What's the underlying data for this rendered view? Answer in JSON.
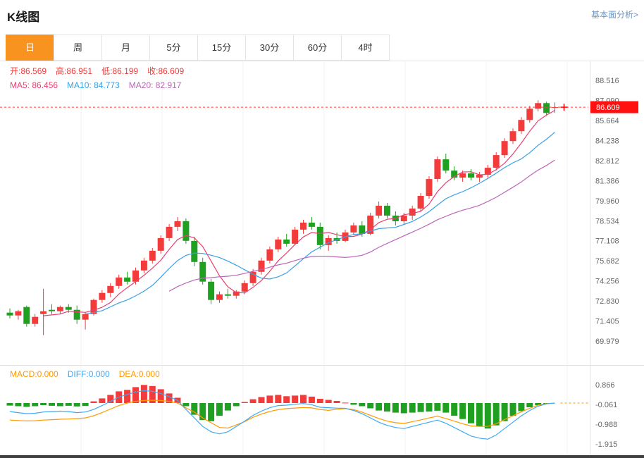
{
  "header": {
    "title": "K线图",
    "link": "基本面分析>"
  },
  "tabs": [
    {
      "label": "日",
      "active": true
    },
    {
      "label": "周",
      "active": false
    },
    {
      "label": "月",
      "active": false
    },
    {
      "label": "5分",
      "active": false
    },
    {
      "label": "15分",
      "active": false
    },
    {
      "label": "30分",
      "active": false
    },
    {
      "label": "60分",
      "active": false
    },
    {
      "label": "4时",
      "active": false
    }
  ],
  "price_panel": {
    "ohlc": [
      {
        "label": "开:",
        "value": "86.569"
      },
      {
        "label": "高:",
        "value": "86.951"
      },
      {
        "label": "低:",
        "value": "86.199"
      },
      {
        "label": "收:",
        "value": "86.609"
      }
    ]
  },
  "macd_panel": {
    "legend": [
      {
        "label": "MACD:",
        "value": "0.000"
      },
      {
        "label": "DIFF:",
        "value": "0.000"
      },
      {
        "label": "DEA:",
        "value": "0.000"
      }
    ]
  },
  "colors": {
    "accent_tab": "#f7931e",
    "up": "#f23b3b",
    "down": "#20a020",
    "link": "#6b96c4",
    "axis_text": "#666666",
    "current_price_tag_bg": "#ff1111"
  },
  "chart_data": {
    "type": "candlestick",
    "title": "K线图",
    "period_selected": "日",
    "up_color": "#f23b3b",
    "down_color": "#20a020",
    "current_price": 86.609,
    "price_axis_ticks": [
      88.516,
      87.09,
      85.664,
      84.238,
      82.812,
      81.386,
      79.96,
      78.534,
      77.108,
      75.682,
      74.256,
      72.83,
      71.405,
      69.979
    ],
    "ma": [
      {
        "label": "MA5: ",
        "period": 5,
        "value": "86.456",
        "color": "#e8416f"
      },
      {
        "label": "MA10: ",
        "period": 10,
        "value": "84.773",
        "color": "#38a1e5"
      },
      {
        "label": "MA20: ",
        "period": 20,
        "value": "82.917",
        "color": "#bb66bb"
      }
    ],
    "candles": [
      [
        72.0,
        72.3,
        71.6,
        71.8
      ],
      [
        71.8,
        72.2,
        71.5,
        72.1
      ],
      [
        72.4,
        72.5,
        71.0,
        71.2
      ],
      [
        71.2,
        71.9,
        71.0,
        71.7
      ],
      [
        71.9,
        73.7,
        70.4,
        72.1
      ],
      [
        72.2,
        72.6,
        71.9,
        72.1
      ],
      [
        72.1,
        72.5,
        71.9,
        72.4
      ],
      [
        72.4,
        72.6,
        72.0,
        72.2
      ],
      [
        72.2,
        72.5,
        71.2,
        71.5
      ],
      [
        71.5,
        72.0,
        70.8,
        71.9
      ],
      [
        71.9,
        73.0,
        71.8,
        72.9
      ],
      [
        72.9,
        73.6,
        72.7,
        73.4
      ],
      [
        73.4,
        74.1,
        73.1,
        73.9
      ],
      [
        73.9,
        74.7,
        73.7,
        74.5
      ],
      [
        74.5,
        74.9,
        74.0,
        74.2
      ],
      [
        74.2,
        75.2,
        74.0,
        75.0
      ],
      [
        75.0,
        75.9,
        74.8,
        75.7
      ],
      [
        75.7,
        76.6,
        75.5,
        76.4
      ],
      [
        76.4,
        77.5,
        76.2,
        77.3
      ],
      [
        77.3,
        78.3,
        77.1,
        78.1
      ],
      [
        78.1,
        78.8,
        77.8,
        78.5
      ],
      [
        78.5,
        78.7,
        76.9,
        77.1
      ],
      [
        77.1,
        77.4,
        75.3,
        75.6
      ],
      [
        75.6,
        75.9,
        74.0,
        74.2
      ],
      [
        74.2,
        74.4,
        72.6,
        72.9
      ],
      [
        72.9,
        73.5,
        72.7,
        73.3
      ],
      [
        73.3,
        73.7,
        73.0,
        73.2
      ],
      [
        73.2,
        73.6,
        73.0,
        73.5
      ],
      [
        73.5,
        74.3,
        73.3,
        74.1
      ],
      [
        74.1,
        75.1,
        73.9,
        74.9
      ],
      [
        74.9,
        75.9,
        74.7,
        75.7
      ],
      [
        75.7,
        76.7,
        75.5,
        76.5
      ],
      [
        76.5,
        77.4,
        76.3,
        77.2
      ],
      [
        77.2,
        77.6,
        76.7,
        76.9
      ],
      [
        76.9,
        78.1,
        76.8,
        77.9
      ],
      [
        77.9,
        78.6,
        77.6,
        78.4
      ],
      [
        78.4,
        78.8,
        77.9,
        78.1
      ],
      [
        78.1,
        78.4,
        76.5,
        76.8
      ],
      [
        76.8,
        77.5,
        76.4,
        77.3
      ],
      [
        77.3,
        77.7,
        76.9,
        77.1
      ],
      [
        77.1,
        77.9,
        77.0,
        77.7
      ],
      [
        77.7,
        78.4,
        77.5,
        78.2
      ],
      [
        78.2,
        78.5,
        77.4,
        77.6
      ],
      [
        77.6,
        79.1,
        77.5,
        78.9
      ],
      [
        78.9,
        79.9,
        78.7,
        79.6
      ],
      [
        79.6,
        79.8,
        78.7,
        78.9
      ],
      [
        78.9,
        79.2,
        78.2,
        78.5
      ],
      [
        78.5,
        79.1,
        78.3,
        78.9
      ],
      [
        78.9,
        79.6,
        78.6,
        79.4
      ],
      [
        79.4,
        80.5,
        79.2,
        80.3
      ],
      [
        80.3,
        81.7,
        80.1,
        81.5
      ],
      [
        81.5,
        83.1,
        81.3,
        82.9
      ],
      [
        82.9,
        83.3,
        81.9,
        82.1
      ],
      [
        82.1,
        82.4,
        81.4,
        81.6
      ],
      [
        81.6,
        82.1,
        81.3,
        81.9
      ],
      [
        81.9,
        82.2,
        81.4,
        81.6
      ],
      [
        81.6,
        82.0,
        81.3,
        81.8
      ],
      [
        81.8,
        82.5,
        81.6,
        82.3
      ],
      [
        82.3,
        83.4,
        82.1,
        83.2
      ],
      [
        83.2,
        84.4,
        83.0,
        84.2
      ],
      [
        84.2,
        85.1,
        84.0,
        84.9
      ],
      [
        84.9,
        85.9,
        84.7,
        85.7
      ],
      [
        85.7,
        86.7,
        85.5,
        86.5
      ],
      [
        86.5,
        87.1,
        86.3,
        86.9
      ],
      [
        86.9,
        87.0,
        86.0,
        86.2
      ],
      [
        86.569,
        86.951,
        86.199,
        86.609
      ]
    ],
    "macd": {
      "type": "bar",
      "last": {
        "macd": 0.0,
        "diff": 0.0,
        "dea": 0.0
      },
      "axis_ticks": [
        0.866,
        -0.061,
        -0.988,
        -1.915
      ],
      "hist_up_color": "#f23b3b",
      "hist_down_color": "#20a020",
      "diff_color": "#3fa9f5",
      "dea_color": "#ff9a00",
      "hist": [
        -0.12,
        -0.15,
        -0.18,
        -0.15,
        -0.1,
        -0.13,
        -0.15,
        -0.13,
        -0.16,
        -0.14,
        0.08,
        0.22,
        0.38,
        0.55,
        0.62,
        0.75,
        0.85,
        0.8,
        0.65,
        0.45,
        0.25,
        -0.15,
        -0.55,
        -0.8,
        -0.85,
        -0.6,
        -0.35,
        -0.15,
        0.05,
        0.18,
        0.28,
        0.35,
        0.38,
        0.32,
        0.35,
        0.38,
        0.3,
        0.2,
        0.15,
        0.1,
        0.02,
        -0.08,
        -0.15,
        -0.25,
        -0.35,
        -0.4,
        -0.45,
        -0.48,
        -0.45,
        -0.42,
        -0.4,
        -0.36,
        -0.45,
        -0.6,
        -0.75,
        -0.95,
        -1.1,
        -1.2,
        -1.05,
        -0.85,
        -0.6,
        -0.38,
        -0.2,
        -0.1,
        -0.03,
        0.0
      ],
      "diff": [
        -0.4,
        -0.45,
        -0.5,
        -0.48,
        -0.42,
        -0.4,
        -0.38,
        -0.4,
        -0.45,
        -0.42,
        -0.3,
        -0.12,
        0.08,
        0.28,
        0.4,
        0.52,
        0.58,
        0.55,
        0.45,
        0.3,
        0.12,
        -0.3,
        -0.7,
        -1.1,
        -1.35,
        -1.45,
        -1.35,
        -1.1,
        -0.85,
        -0.58,
        -0.38,
        -0.22,
        -0.12,
        -0.1,
        -0.06,
        -0.02,
        -0.08,
        -0.2,
        -0.22,
        -0.24,
        -0.25,
        -0.35,
        -0.5,
        -0.7,
        -0.9,
        -1.05,
        -1.15,
        -1.2,
        -1.1,
        -1.0,
        -0.9,
        -0.8,
        -0.95,
        -1.15,
        -1.35,
        -1.55,
        -1.65,
        -1.7,
        -1.5,
        -1.2,
        -0.9,
        -0.6,
        -0.35,
        -0.15,
        -0.04,
        0.0
      ],
      "dea": [
        -0.8,
        -0.82,
        -0.84,
        -0.83,
        -0.8,
        -0.78,
        -0.76,
        -0.75,
        -0.73,
        -0.7,
        -0.6,
        -0.45,
        -0.28,
        -0.12,
        0.0,
        0.08,
        0.12,
        0.13,
        0.12,
        0.08,
        0.0,
        -0.225,
        -0.425,
        -0.7,
        -0.925,
        -1.15,
        -1.175,
        -1.025,
        -0.875,
        -0.67,
        -0.52,
        -0.395,
        -0.31,
        -0.26,
        -0.235,
        -0.21,
        -0.23,
        -0.3,
        -0.345,
        -0.29,
        -0.26,
        -0.31,
        -0.425,
        -0.575,
        -0.725,
        -0.85,
        -0.925,
        -0.96,
        -0.875,
        -0.79,
        -0.7,
        -0.62,
        -0.725,
        -0.85,
        -0.975,
        -1.075,
        -1.1,
        -1.1,
        -0.975,
        -0.775,
        -0.6,
        -0.41,
        -0.25,
        -0.1,
        -0.025,
        0.0
      ]
    }
  }
}
